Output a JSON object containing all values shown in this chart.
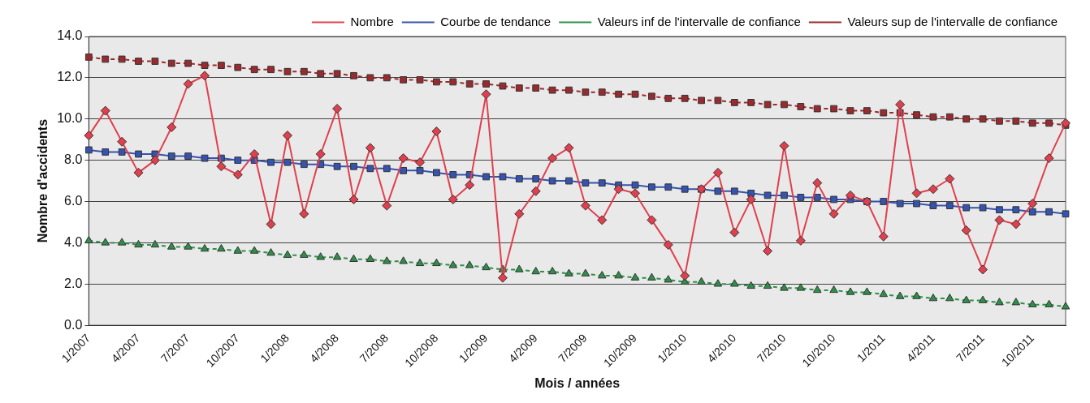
{
  "chart_data": {
    "type": "line",
    "xlabel": "Mois / années",
    "ylabel": "Nombre d'accidents",
    "categories": [
      "1/2007",
      null,
      null,
      "4/2007",
      null,
      null,
      "7/2007",
      null,
      null,
      "10/2007",
      null,
      null,
      "1/2008",
      null,
      null,
      "4/2008",
      null,
      null,
      "7/2008",
      null,
      null,
      "10/2008",
      null,
      null,
      "1/2009",
      null,
      null,
      "4/2009",
      null,
      null,
      "7/2009",
      null,
      null,
      "10/2009",
      null,
      null,
      "1/2010",
      null,
      null,
      "4/2010",
      null,
      null,
      "7/2010",
      null,
      null,
      "10/2010",
      null,
      null,
      "1/2011",
      null,
      null,
      "4/2011",
      null,
      null,
      "7/2011",
      null,
      null,
      "10/2011",
      null,
      null
    ],
    "ylim": [
      0,
      14
    ],
    "yticks": [
      {
        "value": 0,
        "label": "0.0"
      },
      {
        "value": 2,
        "label": "2.0"
      },
      {
        "value": 4,
        "label": "4.0"
      },
      {
        "value": 6,
        "label": "6.0"
      },
      {
        "value": 8,
        "label": "8.0"
      },
      {
        "value": 10,
        "label": "10.0"
      },
      {
        "value": 12,
        "label": "12.0"
      },
      {
        "value": 14,
        "label": "14.0"
      }
    ],
    "grid": "y",
    "legend": "top right",
    "series": [
      {
        "name": "Nombre",
        "color": "#e0404e",
        "marker": "diamond",
        "line_style": "solid",
        "values": [
          9.2,
          10.4,
          8.9,
          7.4,
          8.0,
          9.6,
          11.7,
          12.1,
          7.7,
          7.3,
          8.3,
          4.9,
          9.2,
          5.4,
          8.3,
          10.5,
          6.1,
          8.6,
          5.8,
          8.1,
          7.9,
          9.4,
          6.1,
          6.8,
          11.2,
          2.3,
          5.4,
          6.5,
          8.1,
          8.6,
          5.8,
          5.1,
          6.6,
          6.4,
          5.1,
          3.9,
          2.4,
          6.6,
          7.4,
          4.5,
          6.1,
          3.6,
          8.7,
          4.1,
          6.9,
          5.4,
          6.3,
          6.0,
          4.3,
          10.7,
          6.4,
          6.6,
          7.1,
          4.6,
          2.7,
          5.1,
          4.9,
          5.9,
          8.1,
          9.8
        ]
      },
      {
        "name": "Courbe de tendance",
        "color": "#3553b0",
        "marker": "square",
        "line_style": "solid",
        "values": [
          8.5,
          8.4,
          8.4,
          8.3,
          8.3,
          8.2,
          8.2,
          8.1,
          8.1,
          8.0,
          8.0,
          7.9,
          7.9,
          7.8,
          7.8,
          7.7,
          7.7,
          7.6,
          7.6,
          7.5,
          7.5,
          7.4,
          7.3,
          7.3,
          7.2,
          7.2,
          7.1,
          7.1,
          7.0,
          7.0,
          6.9,
          6.9,
          6.8,
          6.8,
          6.7,
          6.7,
          6.6,
          6.6,
          6.5,
          6.5,
          6.4,
          6.3,
          6.3,
          6.2,
          6.2,
          6.1,
          6.1,
          6.0,
          6.0,
          5.9,
          5.9,
          5.8,
          5.8,
          5.7,
          5.7,
          5.6,
          5.6,
          5.5,
          5.5,
          5.4
        ]
      },
      {
        "name": "Valeurs inf de l'intervalle de confiance",
        "color": "#2e8f4a",
        "marker": "triangle",
        "line_style": "dashed",
        "values": [
          4.1,
          4.0,
          4.0,
          3.9,
          3.9,
          3.8,
          3.8,
          3.7,
          3.7,
          3.6,
          3.6,
          3.5,
          3.4,
          3.4,
          3.3,
          3.3,
          3.2,
          3.2,
          3.1,
          3.1,
          3.0,
          3.0,
          2.9,
          2.9,
          2.8,
          2.7,
          2.7,
          2.6,
          2.6,
          2.5,
          2.5,
          2.4,
          2.4,
          2.3,
          2.3,
          2.2,
          2.1,
          2.1,
          2.0,
          2.0,
          1.9,
          1.9,
          1.8,
          1.8,
          1.7,
          1.7,
          1.6,
          1.6,
          1.5,
          1.4,
          1.4,
          1.3,
          1.3,
          1.2,
          1.2,
          1.1,
          1.1,
          1.0,
          1.0,
          0.9
        ]
      },
      {
        "name": "Valeurs sup de l'intervalle de confiance",
        "color": "#9a2a2e",
        "marker": "square",
        "line_style": "dashed",
        "values": [
          13.0,
          12.9,
          12.9,
          12.8,
          12.8,
          12.7,
          12.7,
          12.6,
          12.6,
          12.5,
          12.4,
          12.4,
          12.3,
          12.3,
          12.2,
          12.2,
          12.1,
          12.0,
          12.0,
          11.9,
          11.9,
          11.8,
          11.8,
          11.7,
          11.7,
          11.6,
          11.5,
          11.5,
          11.4,
          11.4,
          11.3,
          11.3,
          11.2,
          11.2,
          11.1,
          11.0,
          11.0,
          10.9,
          10.9,
          10.8,
          10.8,
          10.7,
          10.7,
          10.6,
          10.5,
          10.5,
          10.4,
          10.4,
          10.3,
          10.3,
          10.2,
          10.1,
          10.1,
          10.0,
          10.0,
          9.9,
          9.9,
          9.8,
          9.8,
          9.7
        ]
      }
    ]
  }
}
